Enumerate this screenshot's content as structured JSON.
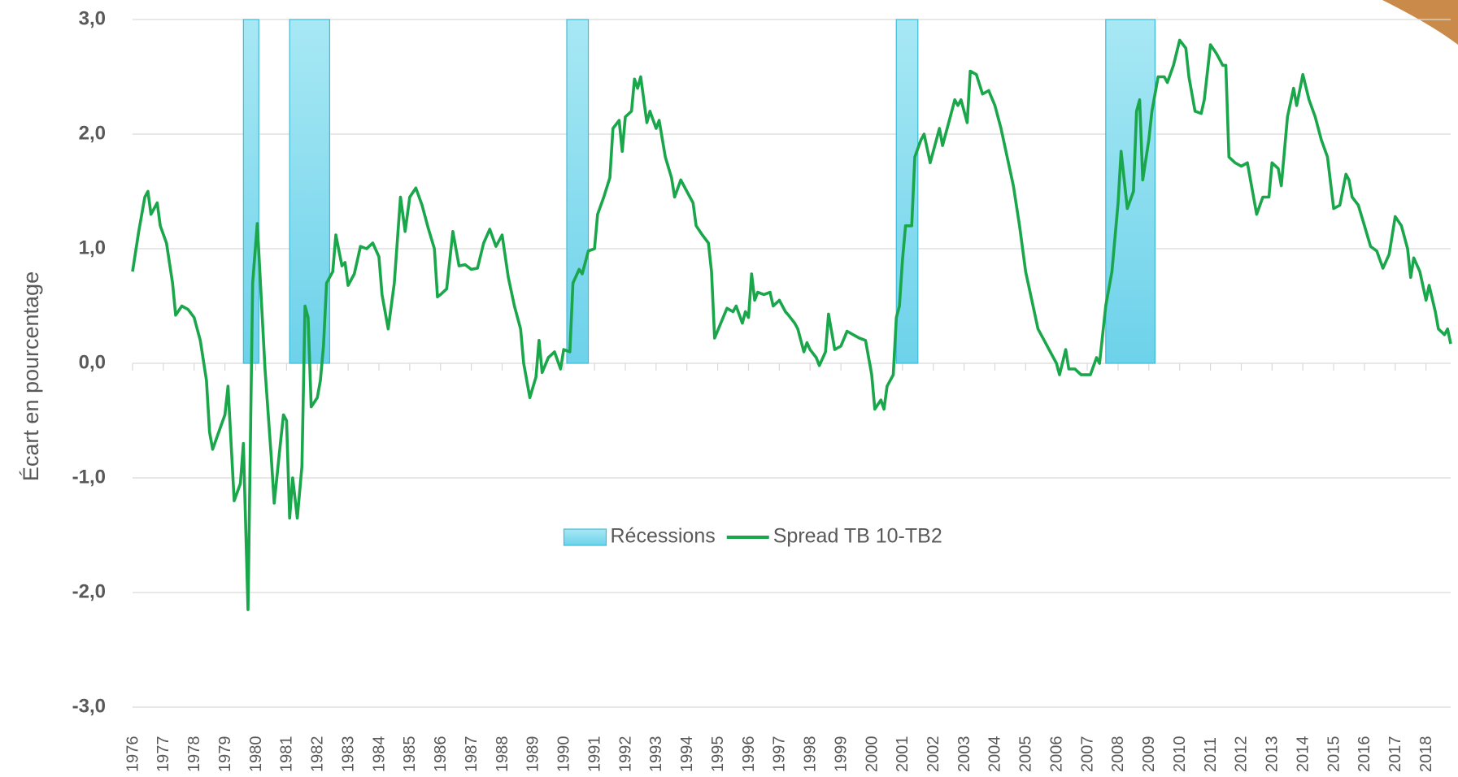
{
  "chart_data": {
    "type": "line",
    "y_label": "Écart en pourcentage",
    "ylim": [
      -3,
      3
    ],
    "yticks": [
      {
        "value": -3,
        "label": "-3,0"
      },
      {
        "value": -2,
        "label": "-2,0"
      },
      {
        "value": -1,
        "label": "-1,0"
      },
      {
        "value": 0,
        "label": "0,0"
      },
      {
        "value": 1,
        "label": "1,0"
      },
      {
        "value": 2,
        "label": "2,0"
      },
      {
        "value": 3,
        "label": "3,0"
      }
    ],
    "xlim": [
      1976,
      2018.8
    ],
    "xticks": [
      1976,
      1977,
      1978,
      1979,
      1980,
      1981,
      1982,
      1983,
      1984,
      1985,
      1986,
      1987,
      1988,
      1989,
      1990,
      1991,
      1992,
      1993,
      1994,
      1995,
      1996,
      1997,
      1998,
      1999,
      2000,
      2001,
      2002,
      2003,
      2004,
      2005,
      2006,
      2007,
      2008,
      2009,
      2010,
      2011,
      2012,
      2013,
      2014,
      2015,
      2016,
      2017,
      2018
    ],
    "grid": true,
    "legend": "center",
    "series": [
      {
        "name": "Récessions",
        "type": "area",
        "color": "#7fd8ec",
        "x_ranges": [
          [
            1979.6,
            1980.1
          ],
          [
            1981.1,
            1982.4
          ],
          [
            1990.1,
            1990.8
          ],
          [
            2000.8,
            2001.5
          ],
          [
            2007.6,
            2009.2
          ]
        ],
        "values": [
          3,
          3,
          3,
          3,
          3
        ]
      },
      {
        "name": "Spread TB 10-TB2",
        "type": "line",
        "color": "#1aa64a",
        "x": [
          1976.0,
          1976.2,
          1976.4,
          1976.5,
          1976.6,
          1976.8,
          1976.9,
          1977.1,
          1977.3,
          1977.4,
          1977.6,
          1977.8,
          1978.0,
          1978.2,
          1978.4,
          1978.5,
          1978.6,
          1978.8,
          1979.0,
          1979.1,
          1979.3,
          1979.5,
          1979.6,
          1979.75,
          1979.9,
          1980.05,
          1980.3,
          1980.5,
          1980.6,
          1980.8,
          1980.9,
          1981.0,
          1981.1,
          1981.2,
          1981.35,
          1981.5,
          1981.6,
          1981.7,
          1981.8,
          1982.0,
          1982.1,
          1982.2,
          1982.3,
          1982.5,
          1982.6,
          1982.8,
          1982.9,
          1983.0,
          1983.2,
          1983.4,
          1983.6,
          1983.8,
          1984.0,
          1984.1,
          1984.3,
          1984.5,
          1984.7,
          1984.85,
          1985.0,
          1985.2,
          1985.4,
          1985.6,
          1985.8,
          1985.9,
          1986.0,
          1986.2,
          1986.4,
          1986.6,
          1986.8,
          1987.0,
          1987.2,
          1987.4,
          1987.6,
          1987.8,
          1988.0,
          1988.2,
          1988.4,
          1988.6,
          1988.7,
          1988.9,
          1989.1,
          1989.2,
          1989.3,
          1989.5,
          1989.7,
          1989.9,
          1990.0,
          1990.2,
          1990.3,
          1990.5,
          1990.6,
          1990.8,
          1991.0,
          1991.1,
          1991.3,
          1991.5,
          1991.6,
          1991.8,
          1991.9,
          1992.0,
          1992.2,
          1992.3,
          1992.4,
          1992.5,
          1992.7,
          1992.8,
          1993.0,
          1993.1,
          1993.3,
          1993.5,
          1993.6,
          1993.8,
          1994.0,
          1994.2,
          1994.3,
          1994.5,
          1994.7,
          1994.8,
          1994.9,
          1995.1,
          1995.3,
          1995.5,
          1995.6,
          1995.8,
          1995.9,
          1996.0,
          1996.1,
          1996.2,
          1996.3,
          1996.5,
          1996.7,
          1996.8,
          1997.0,
          1997.2,
          1997.3,
          1997.5,
          1997.6,
          1997.8,
          1997.9,
          1998.0,
          1998.2,
          1998.3,
          1998.5,
          1998.6,
          1998.8,
          1999.0,
          1999.2,
          1999.4,
          1999.6,
          1999.8,
          2000.0,
          2000.1,
          2000.3,
          2000.4,
          2000.5,
          2000.7,
          2000.8,
          2000.9,
          2001.0,
          2001.1,
          2001.3,
          2001.4,
          2001.6,
          2001.7,
          2001.9,
          2002.0,
          2002.2,
          2002.3,
          2002.5,
          2002.7,
          2002.8,
          2002.9,
          2003.1,
          2003.2,
          2003.4,
          2003.6,
          2003.8,
          2004.0,
          2004.2,
          2004.4,
          2004.6,
          2004.8,
          2005.0,
          2005.2,
          2005.4,
          2005.6,
          2005.8,
          2006.0,
          2006.1,
          2006.3,
          2006.4,
          2006.6,
          2006.8,
          2006.9,
          2007.1,
          2007.3,
          2007.4,
          2007.5,
          2007.6,
          2007.8,
          2008.0,
          2008.1,
          2008.3,
          2008.5,
          2008.6,
          2008.7,
          2008.8,
          2009.0,
          2009.1,
          2009.3,
          2009.5,
          2009.6,
          2009.8,
          2010.0,
          2010.2,
          2010.3,
          2010.5,
          2010.7,
          2010.8,
          2011.0,
          2011.2,
          2011.4,
          2011.5,
          2011.6,
          2011.8,
          2012.0,
          2012.2,
          2012.3,
          2012.5,
          2012.7,
          2012.9,
          2013.0,
          2013.2,
          2013.3,
          2013.5,
          2013.7,
          2013.8,
          2014.0,
          2014.2,
          2014.4,
          2014.6,
          2014.8,
          2015.0,
          2015.2,
          2015.4,
          2015.5,
          2015.6,
          2015.8,
          2016.0,
          2016.2,
          2016.4,
          2016.6,
          2016.8,
          2017.0,
          2017.2,
          2017.4,
          2017.5,
          2017.6,
          2017.8,
          2018.0,
          2018.1,
          2018.3,
          2018.4,
          2018.6,
          2018.7,
          2018.8
        ],
        "values": [
          0.8,
          1.15,
          1.45,
          1.5,
          1.3,
          1.4,
          1.2,
          1.05,
          0.7,
          0.42,
          0.5,
          0.47,
          0.4,
          0.2,
          -0.15,
          -0.6,
          -0.75,
          -0.6,
          -0.45,
          -0.2,
          -1.2,
          -1.05,
          -0.7,
          -2.15,
          0.7,
          1.22,
          -0.05,
          -0.8,
          -1.22,
          -0.7,
          -0.45,
          -0.5,
          -1.35,
          -1.0,
          -1.35,
          -0.9,
          0.5,
          0.4,
          -0.38,
          -0.3,
          -0.15,
          0.15,
          0.7,
          0.8,
          1.12,
          0.85,
          0.88,
          0.68,
          0.78,
          1.02,
          1.0,
          1.05,
          0.93,
          0.6,
          0.3,
          0.7,
          1.45,
          1.15,
          1.45,
          1.53,
          1.38,
          1.18,
          1.0,
          0.58,
          0.6,
          0.65,
          1.15,
          0.85,
          0.86,
          0.82,
          0.83,
          1.05,
          1.17,
          1.02,
          1.12,
          0.75,
          0.5,
          0.3,
          0.0,
          -0.3,
          -0.12,
          0.2,
          -0.08,
          0.05,
          0.1,
          -0.05,
          0.12,
          0.1,
          0.7,
          0.82,
          0.78,
          0.98,
          1.0,
          1.3,
          1.45,
          1.62,
          2.05,
          2.12,
          1.85,
          2.15,
          2.2,
          2.48,
          2.4,
          2.5,
          2.1,
          2.2,
          2.05,
          2.12,
          1.8,
          1.62,
          1.45,
          1.6,
          1.5,
          1.4,
          1.2,
          1.12,
          1.05,
          0.8,
          0.22,
          0.35,
          0.48,
          0.45,
          0.5,
          0.35,
          0.45,
          0.4,
          0.78,
          0.55,
          0.62,
          0.6,
          0.62,
          0.5,
          0.55,
          0.45,
          0.42,
          0.35,
          0.3,
          0.1,
          0.18,
          0.12,
          0.05,
          -0.02,
          0.1,
          0.43,
          0.12,
          0.15,
          0.28,
          0.25,
          0.22,
          0.2,
          -0.1,
          -0.4,
          -0.32,
          -0.4,
          -0.2,
          -0.1,
          0.4,
          0.5,
          0.9,
          1.2,
          1.2,
          1.8,
          1.95,
          2.0,
          1.75,
          1.85,
          2.05,
          1.9,
          2.1,
          2.3,
          2.25,
          2.3,
          2.1,
          2.55,
          2.52,
          2.35,
          2.38,
          2.25,
          2.05,
          1.8,
          1.55,
          1.2,
          0.8,
          0.55,
          0.3,
          0.2,
          0.1,
          0.0,
          -0.1,
          0.12,
          -0.05,
          -0.05,
          -0.1,
          -0.1,
          -0.1,
          0.05,
          0.0,
          0.25,
          0.5,
          0.8,
          1.4,
          1.85,
          1.35,
          1.5,
          2.2,
          2.3,
          1.6,
          1.95,
          2.2,
          2.5,
          2.5,
          2.45,
          2.6,
          2.82,
          2.75,
          2.5,
          2.2,
          2.18,
          2.3,
          2.78,
          2.7,
          2.6,
          2.6,
          1.8,
          1.75,
          1.72,
          1.75,
          1.6,
          1.3,
          1.45,
          1.45,
          1.75,
          1.7,
          1.55,
          2.15,
          2.4,
          2.25,
          2.52,
          2.3,
          2.15,
          1.95,
          1.8,
          1.35,
          1.38,
          1.65,
          1.6,
          1.45,
          1.38,
          1.2,
          1.02,
          0.98,
          0.83,
          0.95,
          1.28,
          1.2,
          1.0,
          0.75,
          0.92,
          0.8,
          0.55,
          0.68,
          0.45,
          0.3,
          0.25,
          0.3,
          0.17
        ]
      }
    ]
  }
}
